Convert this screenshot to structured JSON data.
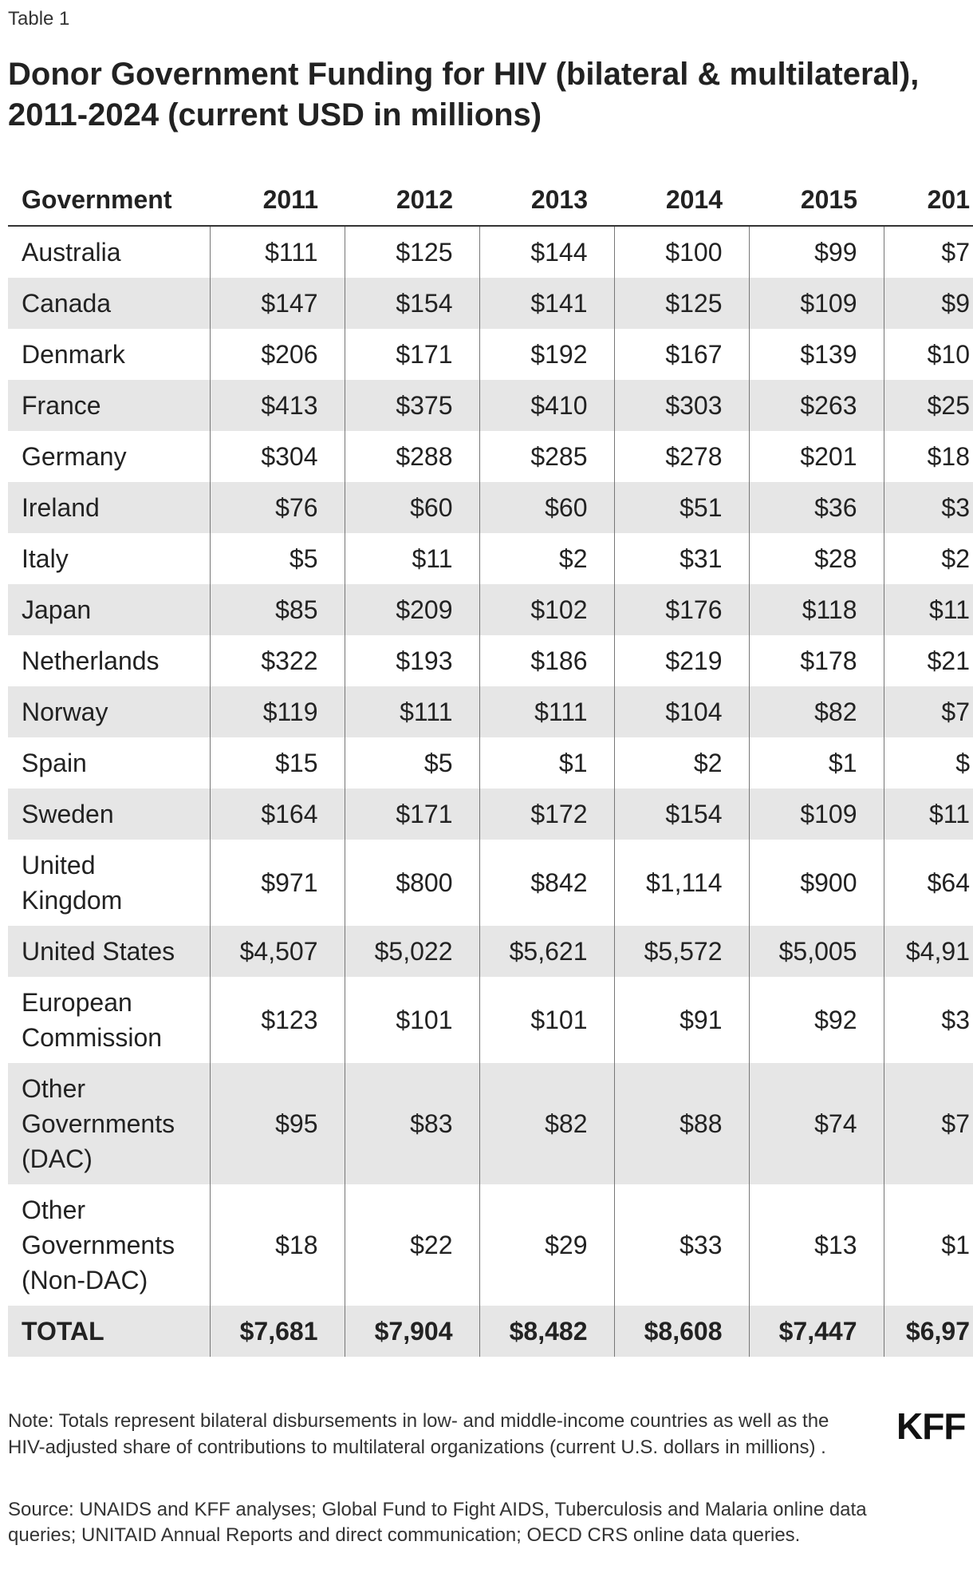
{
  "header": {
    "label": "Table 1",
    "title": "Donor Government Funding for HIV (bilateral & multilateral), 2011-2024 (current USD in millions)"
  },
  "table": {
    "columns": [
      "Government",
      "2011",
      "2012",
      "2013",
      "2014",
      "2015",
      "201"
    ],
    "rows": [
      [
        "Australia",
        "$111",
        "$125",
        "$144",
        "$100",
        "$99",
        "$7"
      ],
      [
        "Canada",
        "$147",
        "$154",
        "$141",
        "$125",
        "$109",
        "$9"
      ],
      [
        "Denmark",
        "$206",
        "$171",
        "$192",
        "$167",
        "$139",
        "$10"
      ],
      [
        "France",
        "$413",
        "$375",
        "$410",
        "$303",
        "$263",
        "$25"
      ],
      [
        "Germany",
        "$304",
        "$288",
        "$285",
        "$278",
        "$201",
        "$18"
      ],
      [
        "Ireland",
        "$76",
        "$60",
        "$60",
        "$51",
        "$36",
        "$3"
      ],
      [
        "Italy",
        "$5",
        "$11",
        "$2",
        "$31",
        "$28",
        "$2"
      ],
      [
        "Japan",
        "$85",
        "$209",
        "$102",
        "$176",
        "$118",
        "$11"
      ],
      [
        "Netherlands",
        "$322",
        "$193",
        "$186",
        "$219",
        "$178",
        "$21"
      ],
      [
        "Norway",
        "$119",
        "$111",
        "$111",
        "$104",
        "$82",
        "$7"
      ],
      [
        "Spain",
        "$15",
        "$5",
        "$1",
        "$2",
        "$1",
        "$"
      ],
      [
        "Sweden",
        "$164",
        "$171",
        "$172",
        "$154",
        "$109",
        "$11"
      ],
      [
        "United Kingdom",
        "$971",
        "$800",
        "$842",
        "$1,114",
        "$900",
        "$64"
      ],
      [
        "United States",
        "$4,507",
        "$5,022",
        "$5,621",
        "$5,572",
        "$5,005",
        "$4,91"
      ],
      [
        "European Commission",
        "$123",
        "$101",
        "$101",
        "$91",
        "$92",
        "$3"
      ],
      [
        "Other Governments (DAC)",
        "$95",
        "$83",
        "$82",
        "$88",
        "$74",
        "$7"
      ],
      [
        "Other Governments (Non-DAC)",
        "$18",
        "$22",
        "$29",
        "$33",
        "$13",
        "$1"
      ],
      [
        "TOTAL",
        "$7,681",
        "$7,904",
        "$8,482",
        "$8,608",
        "$7,447",
        "$6,97"
      ]
    ]
  },
  "footer": {
    "note": "Note: Totals represent bilateral disbursements in low- and middle-income countries as well as the HIV-adjusted share of contributions to multilateral organizations (current U.S. dollars in millions) .",
    "source": "Source: UNAIDS and KFF analyses; Global Fund to Fight AIDS, Tuberculosis and Malaria online data queries; UNITAID Annual Reports and direct communication; OECD CRS online data queries.",
    "logo": "KFF"
  }
}
